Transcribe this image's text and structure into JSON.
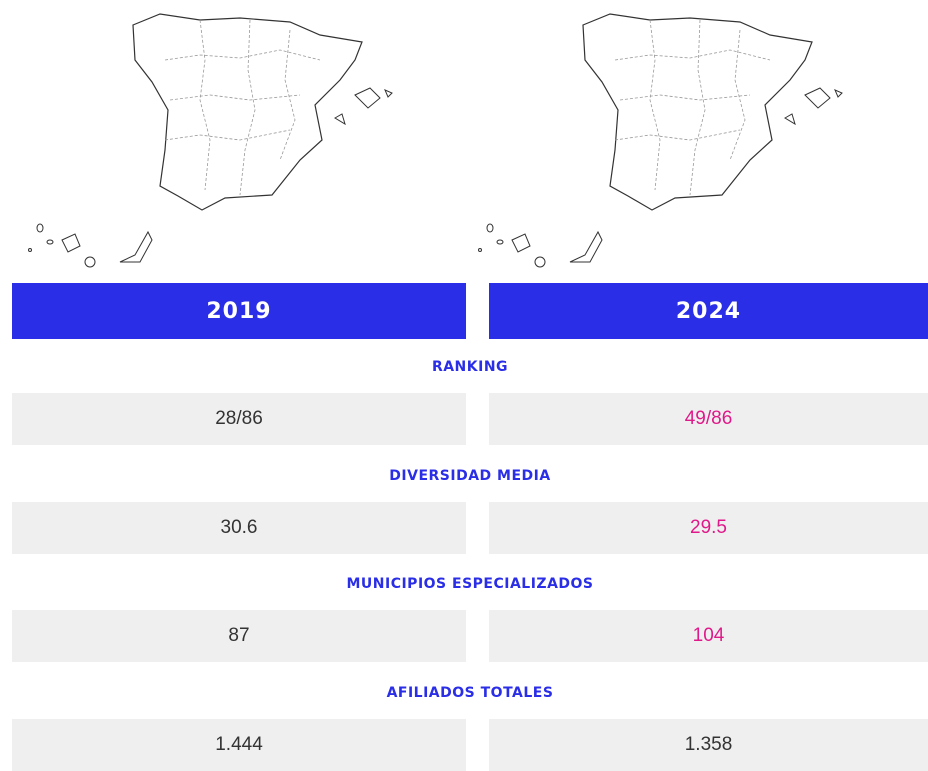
{
  "columns": [
    "2019",
    "2024"
  ],
  "rows": [
    {
      "label": "RANKING",
      "values": [
        "28/86",
        "49/86"
      ],
      "colors": [
        "#333333",
        "#e0198a"
      ]
    },
    {
      "label": "DIVERSIDAD MEDIA",
      "values": [
        "30.6",
        "29.5"
      ],
      "colors": [
        "#333333",
        "#e0198a"
      ]
    },
    {
      "label": "MUNICIPIOS ESPECIALIZADOS",
      "values": [
        "87",
        "104"
      ],
      "colors": [
        "#333333",
        "#e0198a"
      ]
    },
    {
      "label": "AFILIADOS TOTALES",
      "values": [
        "1.444",
        "1.358"
      ],
      "colors": [
        "#333333",
        "#333333"
      ]
    }
  ]
}
